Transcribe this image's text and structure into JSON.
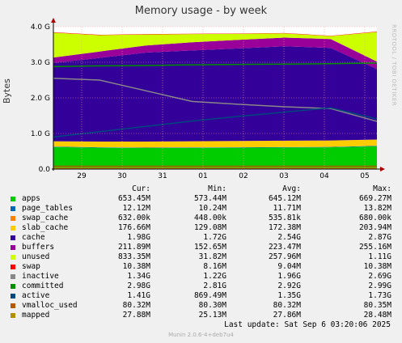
{
  "chart_data": {
    "type": "area",
    "title": "Memory usage - by week",
    "ylabel": "Bytes",
    "ylim": [
      0,
      4000000000
    ],
    "yticks": [
      "0.0",
      "1.0 G",
      "2.0 G",
      "3.0 G",
      "4.0 G"
    ],
    "xticks": [
      "29",
      "30",
      "31",
      "01",
      "02",
      "03",
      "04",
      "05"
    ],
    "grid": true,
    "stacked_series": [
      {
        "name": "apps",
        "color": "#00cc00",
        "values": [
          620000000,
          600000000,
          590000000,
          595000000,
          600000000,
          605000000,
          610000000,
          640000000
        ]
      },
      {
        "name": "page_tables",
        "color": "#0066b3",
        "values": [
          12000000,
          12000000,
          12000000,
          12000000,
          12000000,
          12000000,
          12000000,
          12000000
        ]
      },
      {
        "name": "swap_cache",
        "color": "#ff8000",
        "values": [
          550000,
          540000,
          530000,
          530000,
          530000,
          540000,
          540000,
          630000
        ]
      },
      {
        "name": "slab_cache",
        "color": "#ffcc00",
        "values": [
          150000000,
          160000000,
          170000000,
          175000000,
          178000000,
          180000000,
          182000000,
          176000000
        ]
      },
      {
        "name": "cache",
        "color": "#330099",
        "values": [
          2200000000,
          2350000000,
          2500000000,
          2550000000,
          2600000000,
          2650000000,
          2600000000,
          1980000000
        ]
      },
      {
        "name": "buffers",
        "color": "#990099",
        "values": [
          150000000,
          180000000,
          200000000,
          230000000,
          240000000,
          245000000,
          250000000,
          211000000
        ]
      },
      {
        "name": "unused",
        "color": "#ccff00",
        "values": [
          700000000,
          460000000,
          310000000,
          230000000,
          170000000,
          120000000,
          80000000,
          833000000
        ]
      },
      {
        "name": "swap",
        "color": "#ff0000",
        "values": [
          10000000,
          10000000,
          9000000,
          9000000,
          9000000,
          9000000,
          9000000,
          10000000
        ]
      }
    ],
    "line_series": [
      {
        "name": "inactive",
        "color": "#888888",
        "values": [
          2550000000,
          2500000000,
          2200000000,
          1900000000,
          1820000000,
          1750000000,
          1700000000,
          1340000000
        ]
      },
      {
        "name": "committed",
        "color": "#008f00",
        "values": [
          2880000000,
          2900000000,
          2910000000,
          2930000000,
          2940000000,
          2950000000,
          2960000000,
          2980000000
        ]
      },
      {
        "name": "active",
        "color": "#00487d",
        "values": [
          900000000,
          1050000000,
          1200000000,
          1350000000,
          1480000000,
          1600000000,
          1720000000,
          1410000000
        ]
      },
      {
        "name": "vmalloc_used",
        "color": "#b35a00",
        "values": [
          80300000,
          80300000,
          80300000,
          80300000,
          80300000,
          80300000,
          80300000,
          80300000
        ]
      },
      {
        "name": "mapped",
        "color": "#b38f00",
        "values": [
          27000000,
          27500000,
          27800000,
          27900000,
          28000000,
          28000000,
          28100000,
          27880000
        ]
      }
    ]
  },
  "legend": {
    "headers": {
      "cur": "Cur:",
      "min": "Min:",
      "avg": "Avg:",
      "max": "Max:"
    },
    "rows": [
      {
        "name": "apps",
        "color": "#00cc00",
        "cur": "653.45M",
        "min": "573.44M",
        "avg": "645.12M",
        "max": "669.27M"
      },
      {
        "name": "page_tables",
        "color": "#0066b3",
        "cur": "12.12M",
        "min": "10.24M",
        "avg": "11.71M",
        "max": "13.82M"
      },
      {
        "name": "swap_cache",
        "color": "#ff8000",
        "cur": "632.00k",
        "min": "448.00k",
        "avg": "535.81k",
        "max": "680.00k"
      },
      {
        "name": "slab_cache",
        "color": "#ffcc00",
        "cur": "176.66M",
        "min": "129.08M",
        "avg": "172.38M",
        "max": "203.94M"
      },
      {
        "name": "cache",
        "color": "#330099",
        "cur": "1.98G",
        "min": "1.72G",
        "avg": "2.54G",
        "max": "2.87G"
      },
      {
        "name": "buffers",
        "color": "#990099",
        "cur": "211.89M",
        "min": "152.65M",
        "avg": "223.47M",
        "max": "255.16M"
      },
      {
        "name": "unused",
        "color": "#ccff00",
        "cur": "833.35M",
        "min": "31.82M",
        "avg": "257.96M",
        "max": "1.11G"
      },
      {
        "name": "swap",
        "color": "#ff0000",
        "cur": "10.38M",
        "min": "8.16M",
        "avg": "9.04M",
        "max": "10.38M"
      },
      {
        "name": "inactive",
        "color": "#888888",
        "cur": "1.34G",
        "min": "1.22G",
        "avg": "1.96G",
        "max": "2.69G"
      },
      {
        "name": "committed",
        "color": "#008f00",
        "cur": "2.98G",
        "min": "2.81G",
        "avg": "2.92G",
        "max": "2.99G"
      },
      {
        "name": "active",
        "color": "#00487d",
        "cur": "1.41G",
        "min": "869.49M",
        "avg": "1.35G",
        "max": "1.73G"
      },
      {
        "name": "vmalloc_used",
        "color": "#b35a00",
        "cur": "80.32M",
        "min": "80.30M",
        "avg": "80.32M",
        "max": "80.35M"
      },
      {
        "name": "mapped",
        "color": "#b38f00",
        "cur": "27.88M",
        "min": "25.13M",
        "avg": "27.86M",
        "max": "28.48M"
      }
    ]
  },
  "footer": {
    "last_update": "Last update:  Sat Sep  6 03:20:06 2025",
    "munin": "Munin 2.0.6-4+deb7u4"
  },
  "side_credit": "RRDTOOL / TOBI OETIKER"
}
